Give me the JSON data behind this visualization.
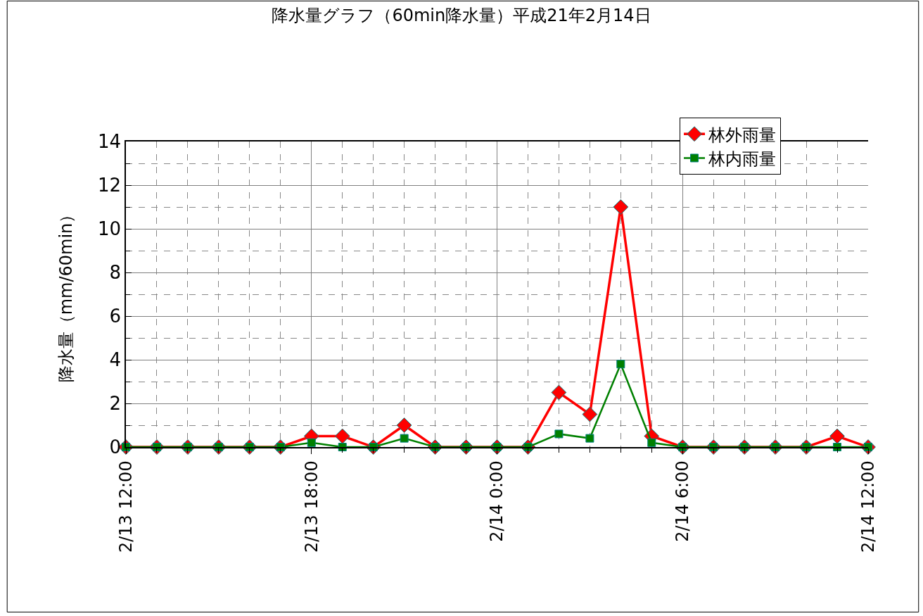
{
  "chart_data": {
    "type": "line",
    "title": "降水量グラフ（60min降水量）平成21年2月14日",
    "ylabel": "降水量（mm/60min）",
    "x": [
      "--02-13T12:00",
      "--02-13T13:00",
      "--02-13T14:00",
      "--02-13T15:00",
      "--02-13T16:00",
      "--02-13T17:00",
      "--02-13T18:00",
      "--02-13T19:00",
      "--02-13T20:00",
      "--02-13T21:00",
      "--02-13T22:00",
      "--02-13T23:00",
      "--02-14T00:00",
      "--02-14T01:00",
      "--02-14T02:00",
      "--02-14T03:00",
      "--02-14T04:00",
      "--02-14T05:00",
      "--02-14T06:00",
      "--02-14T07:00",
      "--02-14T08:00",
      "--02-14T09:00",
      "--02-14T10:00",
      "--02-14T11:00",
      "--02-14T12:00"
    ],
    "series": [
      {
        "name": "林外雨量",
        "color": "#ff0000",
        "marker": "diamond",
        "values": [
          0,
          0,
          0,
          0,
          0,
          0,
          0.5,
          0.5,
          0,
          1,
          0,
          0,
          0,
          0,
          2.5,
          1.5,
          11,
          0.5,
          0,
          0,
          0,
          0,
          0,
          0.5,
          0
        ]
      },
      {
        "name": "林内雨量",
        "color": "#008000",
        "marker": "square",
        "values": [
          0,
          0,
          0,
          0,
          0,
          0,
          0.2,
          0,
          0,
          0.4,
          0,
          0,
          0,
          0,
          0.6,
          0.4,
          3.8,
          0.2,
          0,
          0,
          0,
          0,
          0,
          0,
          0
        ]
      }
    ],
    "xlim": [
      "--02-13T12:00",
      "--02-14T12:00"
    ],
    "xticks": [
      {
        "value": "--02-13T12:00",
        "label": "2/13 12:00"
      },
      {
        "value": "--02-13T18:00",
        "label": "2/13 18:00"
      },
      {
        "value": "--02-14T00:00",
        "label": "2/14 0:00"
      },
      {
        "value": "--02-14T06:00",
        "label": "2/14 6:00"
      },
      {
        "value": "--02-14T12:00",
        "label": "2/14 12:00"
      }
    ],
    "ylim": [
      0,
      14
    ],
    "yticks": [
      0,
      2,
      4,
      6,
      8,
      10,
      12,
      14
    ],
    "grid": true,
    "legend": "top right",
    "line_style": "solid"
  }
}
